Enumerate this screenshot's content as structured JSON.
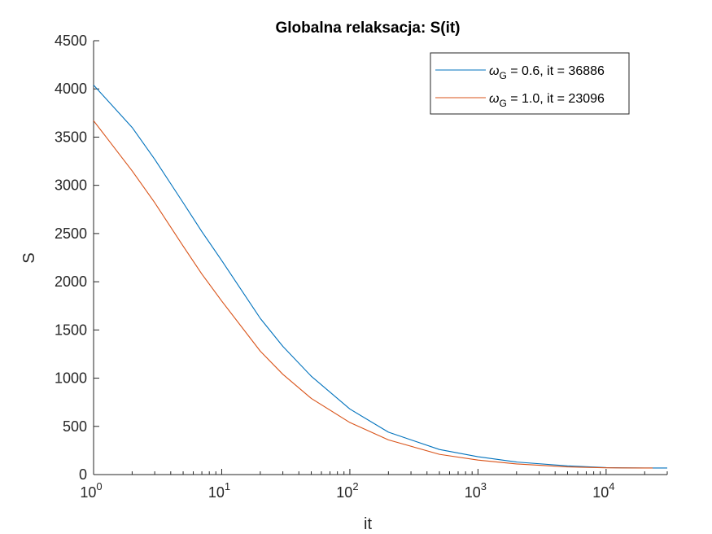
{
  "chart_data": {
    "type": "line",
    "title": "Globalna relaksacja: S(it)",
    "xlabel": "it",
    "ylabel": "S",
    "xscale": "log",
    "xlim": [
      1,
      30000
    ],
    "ylim": [
      0,
      4500
    ],
    "x_tick_labels": [
      {
        "base": "10",
        "exp": "0",
        "value": 1
      },
      {
        "base": "10",
        "exp": "1",
        "value": 10
      },
      {
        "base": "10",
        "exp": "2",
        "value": 100
      },
      {
        "base": "10",
        "exp": "3",
        "value": 1000
      },
      {
        "base": "10",
        "exp": "4",
        "value": 10000
      }
    ],
    "y_ticks": [
      0,
      500,
      1000,
      1500,
      2000,
      2500,
      3000,
      3500,
      4000,
      4500
    ],
    "grid": false,
    "legend_position": "top-right",
    "series": [
      {
        "name": "ω_G = 0.6, it = 36886",
        "legend_symbol": "ω",
        "legend_sub": "G",
        "legend_rest": " = 0.6, it = 36886",
        "color": "#0072BD",
        "x": [
          1,
          2,
          3,
          5,
          7,
          10,
          20,
          30,
          50,
          100,
          200,
          500,
          1000,
          2000,
          5000,
          10000,
          20000,
          30000
        ],
        "y": [
          4040,
          3600,
          3270,
          2820,
          2520,
          2220,
          1620,
          1330,
          1020,
          680,
          440,
          260,
          185,
          130,
          90,
          72,
          68,
          68
        ]
      },
      {
        "name": "ω_G = 1.0, it = 23096",
        "legend_symbol": "ω",
        "legend_sub": "G",
        "legend_rest": " = 1.0, it = 23096",
        "color": "#D95319",
        "x": [
          1,
          2,
          3,
          5,
          7,
          10,
          20,
          30,
          50,
          100,
          200,
          500,
          1000,
          2000,
          5000,
          10000,
          20000,
          23096
        ],
        "y": [
          3670,
          3150,
          2820,
          2370,
          2080,
          1800,
          1280,
          1040,
          790,
          540,
          360,
          210,
          150,
          110,
          80,
          70,
          68,
          68
        ]
      }
    ]
  }
}
